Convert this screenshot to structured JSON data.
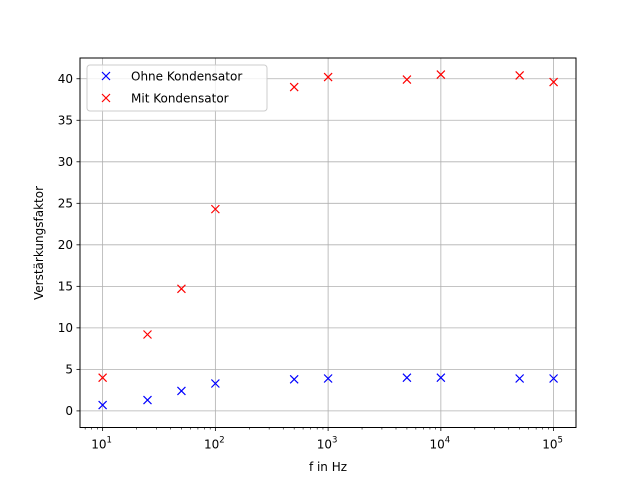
{
  "chart_data": {
    "type": "scatter",
    "title": "",
    "xlabel": "f in Hz",
    "ylabel": "Verstärkungsfaktor",
    "xscale": "log",
    "xlim": [
      6.3,
      158000
    ],
    "ylim": [
      -2,
      42.5
    ],
    "grid": true,
    "legend_position": "top-left",
    "x_ticks": [
      {
        "value": 10,
        "base": "10",
        "exp": "1"
      },
      {
        "value": 100,
        "base": "10",
        "exp": "2"
      },
      {
        "value": 1000,
        "base": "10",
        "exp": "3"
      },
      {
        "value": 10000,
        "base": "10",
        "exp": "4"
      },
      {
        "value": 100000,
        "base": "10",
        "exp": "5"
      }
    ],
    "y_ticks": [
      0,
      5,
      10,
      15,
      20,
      25,
      30,
      35,
      40
    ],
    "series": [
      {
        "name": "Ohne Kondensator",
        "color": "#0000ff",
        "marker": "x",
        "x": [
          10,
          25,
          50,
          100,
          500,
          1000,
          5000,
          10000,
          50000,
          100000
        ],
        "y": [
          0.7,
          1.3,
          2.4,
          3.3,
          3.8,
          3.9,
          4.0,
          4.0,
          3.9,
          3.9
        ]
      },
      {
        "name": "Mit Kondensator",
        "color": "#ff0000",
        "marker": "x",
        "x": [
          10,
          25,
          50,
          100,
          500,
          1000,
          5000,
          10000,
          50000,
          100000
        ],
        "y": [
          4.0,
          9.2,
          14.7,
          24.3,
          39.0,
          40.2,
          39.9,
          40.5,
          40.4,
          39.6
        ]
      }
    ]
  }
}
